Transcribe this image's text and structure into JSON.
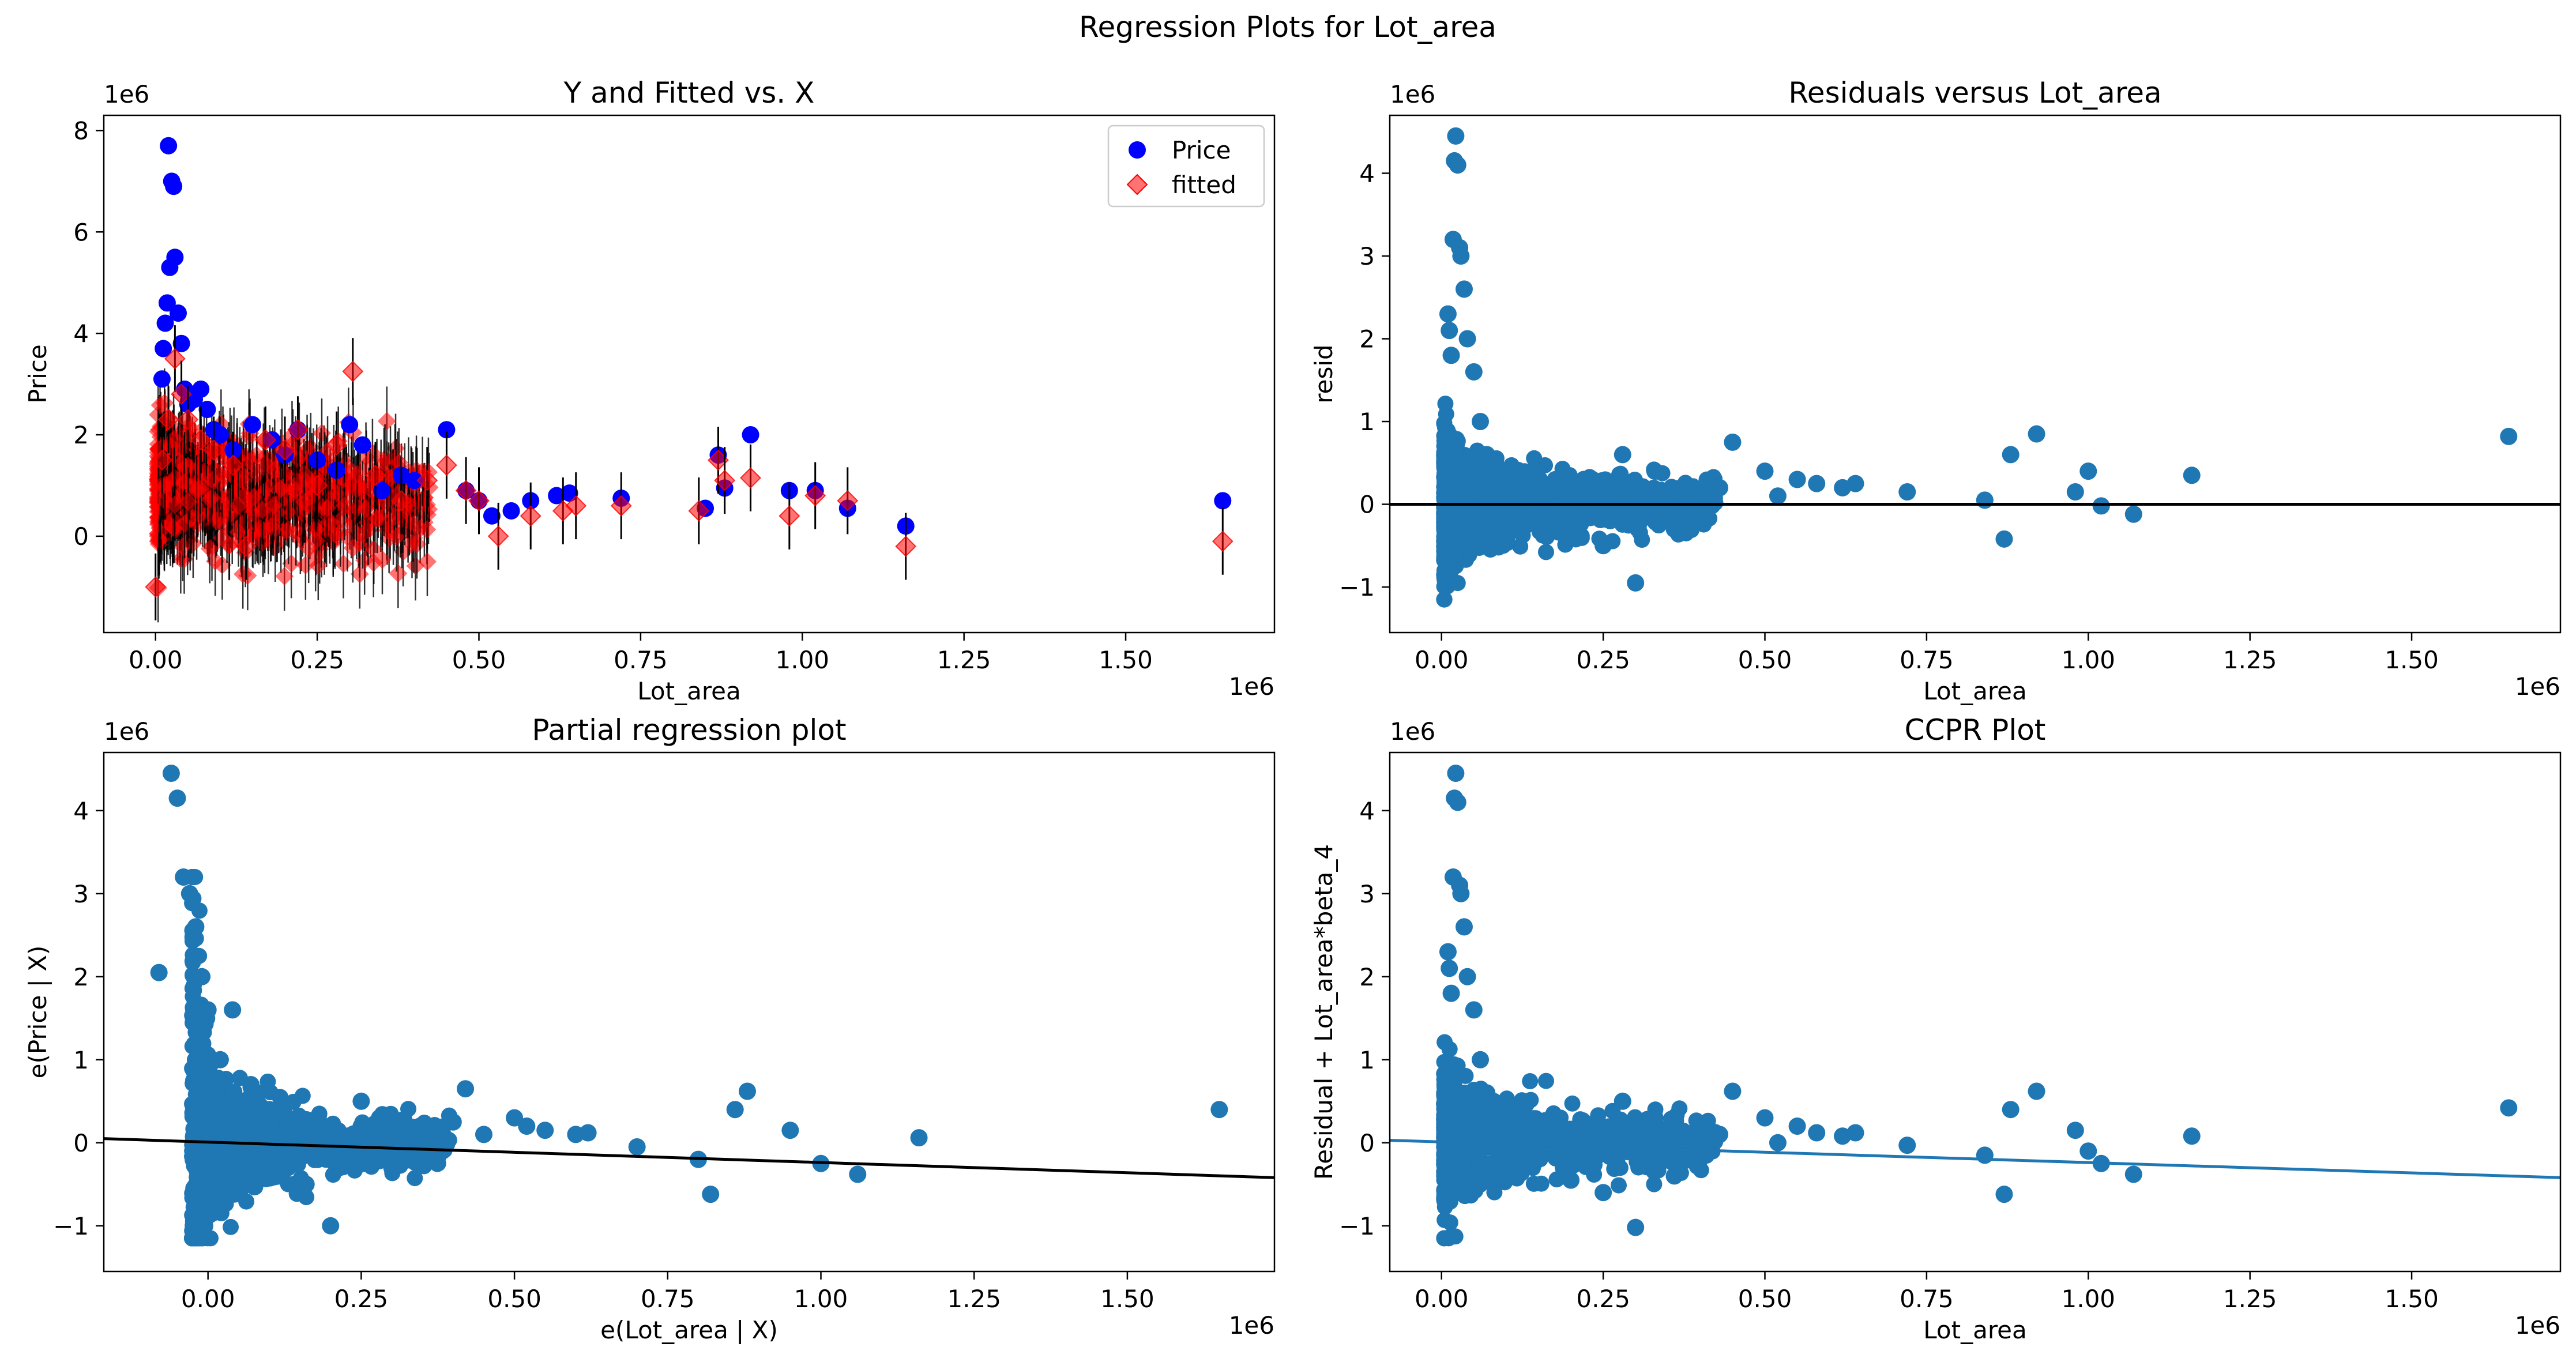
{
  "figure": {
    "suptitle": "Regression Plots for Lot_area"
  },
  "colors": {
    "price": "#0000ff",
    "fitted": "#ff0000",
    "scatter": "#1f77b4",
    "line_black": "#000000",
    "line_blue": "#1f77b4"
  },
  "chart_data": [
    {
      "type": "scatter",
      "title": "Y and Fitted vs. X",
      "xlabel": "Lot_area",
      "ylabel": "Price",
      "x_offset_label": "1e6",
      "y_offset_label": "1e6",
      "xlim": [
        -0.08,
        1.73
      ],
      "ylim": [
        -1.9,
        8.3
      ],
      "xticks": [
        0.0,
        0.25,
        0.5,
        0.75,
        1.0,
        1.25,
        1.5
      ],
      "xtick_labels": [
        "0.00",
        "0.25",
        "0.50",
        "0.75",
        "1.00",
        "1.25",
        "1.50"
      ],
      "yticks": [
        0,
        2,
        4,
        6,
        8
      ],
      "ytick_labels": [
        "0",
        "2",
        "4",
        "6",
        "8"
      ],
      "legend": {
        "position": "top-right",
        "entries": [
          "Price",
          "fitted"
        ]
      },
      "series": [
        {
          "name": "Price",
          "marker": "circle",
          "x": [
            0.02,
            0.025,
            0.028,
            0.03,
            0.022,
            0.018,
            0.035,
            0.015,
            0.012,
            0.04,
            0.01,
            0.045,
            0.05,
            0.06,
            0.07,
            0.08,
            0.09,
            0.1,
            0.12,
            0.15,
            0.18,
            0.2,
            0.22,
            0.25,
            0.28,
            0.3,
            0.32,
            0.35,
            0.38,
            0.4,
            0.45,
            0.48,
            0.5,
            0.52,
            0.55,
            0.58,
            0.62,
            0.64,
            0.72,
            0.85,
            0.87,
            0.88,
            0.92,
            0.98,
            1.02,
            1.07,
            1.16,
            1.65
          ],
          "y": [
            7.7,
            7.0,
            6.9,
            5.5,
            5.3,
            4.6,
            4.4,
            4.2,
            3.7,
            3.8,
            3.1,
            2.9,
            2.6,
            2.7,
            2.9,
            2.5,
            2.1,
            2.0,
            1.7,
            2.2,
            1.9,
            1.6,
            2.1,
            1.5,
            1.3,
            2.2,
            1.8,
            0.9,
            1.2,
            1.1,
            2.1,
            0.9,
            0.7,
            0.4,
            0.5,
            0.7,
            0.8,
            0.85,
            0.75,
            0.55,
            1.6,
            0.95,
            2.0,
            0.9,
            0.9,
            0.55,
            0.2,
            0.7
          ]
        },
        {
          "name": "fitted",
          "marker": "diamond",
          "error_bars": true,
          "x": [
            0.0,
            0.01,
            0.02,
            0.03,
            0.04,
            0.05,
            0.07,
            0.09,
            0.12,
            0.14,
            0.17,
            0.2,
            0.22,
            0.25,
            0.28,
            0.305,
            0.34,
            0.38,
            0.42,
            0.45,
            0.48,
            0.5,
            0.53,
            0.58,
            0.63,
            0.65,
            0.72,
            0.84,
            0.87,
            0.88,
            0.92,
            0.98,
            1.02,
            1.07,
            1.16,
            1.65
          ],
          "y": [
            -1.0,
            1.5,
            2.3,
            3.5,
            2.8,
            2.3,
            1.9,
            1.7,
            1.4,
            -0.2,
            1.9,
            1.7,
            2.1,
            1.0,
            1.8,
            3.25,
            1.2,
            0.7,
            1.1,
            1.4,
            0.9,
            0.7,
            0.0,
            0.4,
            0.5,
            0.6,
            0.6,
            0.5,
            1.5,
            1.1,
            1.15,
            0.4,
            0.8,
            0.7,
            -0.2,
            -0.1
          ]
        }
      ]
    },
    {
      "type": "scatter",
      "title": "Residuals versus Lot_area",
      "xlabel": "Lot_area",
      "ylabel": "resid",
      "x_offset_label": "1e6",
      "y_offset_label": "1e6",
      "xlim": [
        -0.08,
        1.73
      ],
      "ylim": [
        -1.55,
        4.7
      ],
      "xticks": [
        0.0,
        0.25,
        0.5,
        0.75,
        1.0,
        1.25,
        1.5
      ],
      "xtick_labels": [
        "0.00",
        "0.25",
        "0.50",
        "0.75",
        "1.00",
        "1.25",
        "1.50"
      ],
      "yticks": [
        -1,
        0,
        1,
        2,
        3,
        4
      ],
      "ytick_labels": [
        "−1",
        "0",
        "1",
        "2",
        "3",
        "4"
      ],
      "hline": 0,
      "series": [
        {
          "name": "resid",
          "x": [
            0.01,
            0.012,
            0.015,
            0.018,
            0.02,
            0.022,
            0.025,
            0.028,
            0.03,
            0.035,
            0.04,
            0.05,
            0.06,
            0.07,
            0.08,
            0.09,
            0.1,
            0.12,
            0.15,
            0.18,
            0.2,
            0.22,
            0.25,
            0.28,
            0.3,
            0.33,
            0.36,
            0.4,
            0.43,
            0.45,
            0.5,
            0.52,
            0.55,
            0.58,
            0.62,
            0.64,
            0.72,
            0.84,
            0.87,
            0.88,
            0.92,
            0.98,
            1.0,
            1.02,
            1.07,
            1.16,
            1.65
          ],
          "y": [
            2.3,
            2.1,
            1.8,
            3.2,
            4.15,
            4.45,
            4.1,
            3.1,
            3.0,
            2.6,
            2.0,
            1.6,
            1.0,
            0.6,
            0.5,
            0.3,
            0.2,
            0.4,
            0.3,
            0.2,
            -0.4,
            0.3,
            -0.5,
            0.6,
            -0.95,
            0.4,
            -0.3,
            0.0,
            0.2,
            0.75,
            0.4,
            0.1,
            0.3,
            0.25,
            0.2,
            0.25,
            0.15,
            0.05,
            -0.42,
            0.6,
            0.85,
            0.15,
            0.4,
            -0.02,
            -0.12,
            0.35,
            0.82
          ]
        }
      ]
    },
    {
      "type": "scatter",
      "title": "Partial regression plot",
      "xlabel": "e(Lot_area | X)",
      "ylabel": "e(Price | X)",
      "x_offset_label": "1e6",
      "y_offset_label": "1e6",
      "xlim": [
        -0.17,
        1.74
      ],
      "ylim": [
        -1.55,
        4.7
      ],
      "xticks": [
        0.0,
        0.25,
        0.5,
        0.75,
        1.0,
        1.25,
        1.5
      ],
      "xtick_labels": [
        "0.00",
        "0.25",
        "0.50",
        "0.75",
        "1.00",
        "1.25",
        "1.50"
      ],
      "yticks": [
        -1,
        0,
        1,
        2,
        3,
        4
      ],
      "ytick_labels": [
        "−1",
        "0",
        "1",
        "2",
        "3",
        "4"
      ],
      "fit_line": {
        "x": [
          -0.17,
          1.74
        ],
        "y": [
          0.05,
          -0.42
        ]
      },
      "series": [
        {
          "name": "partial",
          "x": [
            -0.08,
            -0.06,
            -0.05,
            -0.04,
            -0.03,
            -0.02,
            -0.01,
            0.0,
            0.02,
            0.04,
            0.07,
            0.1,
            0.13,
            0.16,
            0.2,
            0.25,
            0.28,
            0.3,
            0.35,
            0.4,
            0.42,
            0.45,
            0.5,
            0.52,
            0.55,
            0.6,
            0.62,
            0.7,
            0.8,
            0.82,
            0.86,
            0.88,
            0.95,
            1.0,
            1.06,
            1.16,
            1.65
          ],
          "y": [
            2.05,
            4.45,
            4.15,
            3.2,
            3.0,
            2.6,
            2.0,
            1.6,
            1.0,
            1.6,
            0.7,
            0.4,
            0.2,
            -0.5,
            -1.0,
            0.5,
            0.3,
            -0.3,
            0.2,
            0.25,
            0.65,
            0.1,
            0.3,
            0.2,
            0.15,
            0.1,
            0.12,
            -0.05,
            -0.2,
            -0.62,
            0.4,
            0.62,
            0.15,
            -0.25,
            -0.38,
            0.06,
            0.4
          ]
        }
      ]
    },
    {
      "type": "scatter",
      "title": "CCPR Plot",
      "xlabel": "Lot_area",
      "ylabel": "Residual + Lot_area*beta_4",
      "x_offset_label": "1e6",
      "y_offset_label": "1e6",
      "xlim": [
        -0.08,
        1.73
      ],
      "ylim": [
        -1.55,
        4.7
      ],
      "xticks": [
        0.0,
        0.25,
        0.5,
        0.75,
        1.0,
        1.25,
        1.5
      ],
      "xtick_labels": [
        "0.00",
        "0.25",
        "0.50",
        "0.75",
        "1.00",
        "1.25",
        "1.50"
      ],
      "yticks": [
        -1,
        0,
        1,
        2,
        3,
        4
      ],
      "ytick_labels": [
        "−1",
        "0",
        "1",
        "2",
        "3",
        "4"
      ],
      "fit_line": {
        "x": [
          -0.08,
          1.73
        ],
        "y": [
          0.03,
          -0.42
        ]
      },
      "series": [
        {
          "name": "ccpr",
          "x": [
            0.01,
            0.012,
            0.015,
            0.018,
            0.02,
            0.022,
            0.025,
            0.028,
            0.03,
            0.035,
            0.04,
            0.05,
            0.06,
            0.07,
            0.08,
            0.09,
            0.1,
            0.12,
            0.15,
            0.18,
            0.2,
            0.22,
            0.25,
            0.28,
            0.3,
            0.33,
            0.36,
            0.4,
            0.43,
            0.45,
            0.5,
            0.52,
            0.55,
            0.58,
            0.62,
            0.64,
            0.72,
            0.84,
            0.87,
            0.88,
            0.92,
            0.98,
            1.0,
            1.02,
            1.07,
            1.16,
            1.65
          ],
          "y": [
            2.3,
            2.1,
            1.8,
            3.2,
            4.15,
            4.45,
            4.1,
            3.1,
            3.0,
            2.6,
            2.0,
            1.6,
            1.0,
            0.6,
            0.5,
            0.3,
            0.2,
            0.35,
            0.25,
            0.15,
            -0.45,
            0.25,
            -0.6,
            0.5,
            -1.02,
            0.3,
            -0.4,
            -0.1,
            0.1,
            0.62,
            0.3,
            0.0,
            0.2,
            0.12,
            0.08,
            0.12,
            -0.03,
            -0.15,
            -0.62,
            0.4,
            0.62,
            0.15,
            -0.1,
            -0.25,
            -0.38,
            0.08,
            0.42
          ]
        }
      ]
    }
  ]
}
